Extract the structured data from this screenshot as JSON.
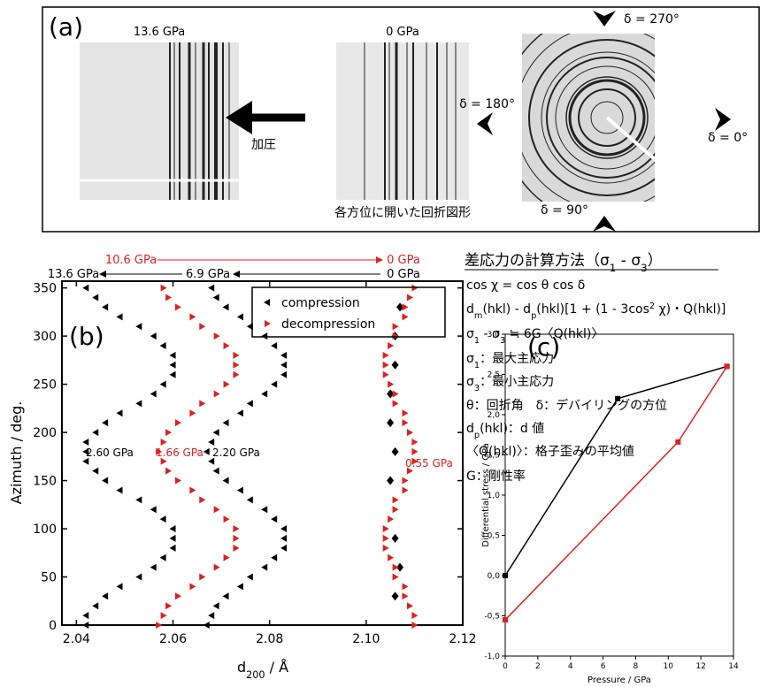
{
  "panel_a": {
    "label": "(a)",
    "image_labels": [
      "13.6 GPa",
      "0 GPa"
    ],
    "arrow_label": "加圧",
    "caption": "各方位に開いた回折図形",
    "directions": [
      "δ = 270°",
      "δ = 180°",
      "δ = 0°",
      "δ = 90°"
    ]
  },
  "method": {
    "title": [
      "差応力の計算方法（",
      "σ",
      {
        "sub": "1"
      },
      " - ",
      "σ",
      {
        "sub": "3"
      },
      "）"
    ],
    "lines": [
      [
        "cos χ = cos θ cos δ"
      ],
      [
        "d",
        {
          "sub": "m"
        },
        "(hkl) - d",
        {
          "sub": "p"
        },
        "(hkl)[1 + (1 - 3cos",
        {
          "sup": "2"
        },
        " χ)・Q(hkl)]"
      ],
      [
        "σ",
        {
          "sub": "1"
        },
        " - σ",
        {
          "sub": "3"
        },
        " ≒ 6G〈Q(hkl)〉"
      ],
      [
        "σ",
        {
          "sub": "1"
        },
        "：最大主応力"
      ],
      [
        "σ",
        {
          "sub": "3"
        },
        "：最小主応力"
      ],
      [
        "θ：回折角　δ：デバイリングの方位"
      ],
      [
        "d",
        {
          "sub": "p"
        },
        "(hkl)：d 値"
      ],
      [
        "〈Q(hkl)〉：格子歪みの平均値"
      ],
      [
        "G：剛性率"
      ]
    ]
  },
  "chart_data": [
    {
      "type": "scatter",
      "panel_label": "(b)",
      "xlabel": [
        "d",
        {
          "sub": "200"
        },
        " / Å"
      ],
      "ylabel": "Azimuth / deg.",
      "xlim": [
        2.037,
        2.12
      ],
      "ylim": [
        0,
        357
      ],
      "xticks": [
        2.04,
        2.06,
        2.08,
        {
          "value": 2.1,
          "label": "2.10"
        },
        2.12
      ],
      "yticks": [
        0,
        50,
        100,
        150,
        200,
        250,
        300,
        350
      ],
      "angles": [
        0,
        10,
        20,
        30,
        40,
        50,
        60,
        70,
        80,
        90,
        100,
        110,
        120,
        130,
        140,
        150,
        160,
        170,
        180,
        190,
        200,
        210,
        220,
        230,
        240,
        250,
        260,
        270,
        280,
        290,
        300,
        310,
        320,
        330,
        340,
        350
      ],
      "groups": [
        {
          "name": "compression",
          "color": "#000000",
          "marker": "triangle-left",
          "series": [
            {
              "label": "13.6 GPa",
              "x": [
                2.042,
                2.042,
                2.044,
                2.046,
                2.049,
                2.053,
                2.056,
                2.058,
                2.06,
                2.06,
                2.06,
                2.058,
                2.056,
                2.053,
                2.049,
                2.046,
                2.044,
                2.042,
                2.042,
                2.042,
                2.044,
                2.046,
                2.049,
                2.053,
                2.056,
                2.058,
                2.06,
                2.06,
                2.06,
                2.058,
                2.056,
                2.053,
                2.049,
                2.046,
                2.044,
                2.042
              ]
            },
            {
              "label": "6.9 GPa",
              "x": [
                2.067,
                2.068,
                2.069,
                2.071,
                2.074,
                2.076,
                2.079,
                2.081,
                2.083,
                2.083,
                2.083,
                2.081,
                2.079,
                2.076,
                2.074,
                2.071,
                2.069,
                2.068,
                2.067,
                2.068,
                2.069,
                2.071,
                2.074,
                2.076,
                2.079,
                2.081,
                2.083,
                2.083,
                2.083,
                2.081,
                2.079,
                2.076,
                2.074,
                2.071,
                2.069,
                2.068
              ]
            },
            {
              "label": "0 GPa",
              "marker": "diamond",
              "y": [
                30,
                60,
                90,
                150,
                180,
                210,
                240,
                270,
                300,
                330
              ],
              "x": [
                2.106,
                2.107,
                2.106,
                2.105,
                2.106,
                2.105,
                2.105,
                2.106,
                2.106,
                2.107
              ]
            }
          ]
        },
        {
          "name": "decompression",
          "color": "#e02020",
          "marker": "triangle-right",
          "series": [
            {
              "label": "10.6 GPa",
              "x": [
                2.057,
                2.058,
                2.059,
                2.061,
                2.064,
                2.066,
                2.069,
                2.071,
                2.073,
                2.073,
                2.073,
                2.071,
                2.069,
                2.066,
                2.064,
                2.061,
                2.059,
                2.058,
                2.057,
                2.058,
                2.059,
                2.061,
                2.064,
                2.066,
                2.069,
                2.071,
                2.073,
                2.073,
                2.073,
                2.071,
                2.069,
                2.066,
                2.064,
                2.061,
                2.059,
                2.058
              ]
            },
            {
              "label": "0 GPa",
              "x": [
                2.11,
                2.11,
                2.109,
                2.108,
                2.108,
                2.106,
                2.106,
                2.105,
                2.104,
                2.104,
                2.104,
                2.105,
                2.106,
                2.106,
                2.108,
                2.108,
                2.109,
                2.11,
                2.11,
                2.11,
                2.109,
                2.108,
                2.108,
                2.106,
                2.106,
                2.105,
                2.104,
                2.104,
                2.104,
                2.105,
                2.106,
                2.106,
                2.108,
                2.108,
                2.109,
                2.11
              ]
            }
          ]
        }
      ],
      "annotations": [
        {
          "text": "2.60 GPa",
          "color": "#000000"
        },
        {
          "text": "1.66 GPa",
          "color": "#e02020"
        },
        {
          "text": "2.20 GPa",
          "color": "#000000"
        },
        {
          "text": "0.55 GPa",
          "color": "#e02020"
        }
      ]
    },
    {
      "type": "line",
      "panel_label": "(c)",
      "xlabel": "Pressure / GPa",
      "ylabel": "Differential stress / GPa",
      "xlim": [
        0,
        14
      ],
      "ylim": [
        -1,
        3
      ],
      "xticks": [
        0,
        2,
        4,
        6,
        8,
        10,
        12,
        14
      ],
      "yticks": [
        {
          "value": -1,
          "label": "-1,0"
        },
        {
          "value": -0.5,
          "label": "-0,5"
        },
        {
          "value": 0,
          "label": "0,0"
        },
        {
          "value": 0.5,
          "label": "0,5"
        },
        {
          "value": 1,
          "label": "1,0"
        },
        {
          "value": 1.5,
          "label": "1,5"
        },
        {
          "value": 2,
          "label": "2,0"
        },
        {
          "value": 2.5,
          "label": "2,5"
        },
        {
          "value": 3,
          "label": "3,0"
        }
      ],
      "series": [
        {
          "color": "#000000",
          "x": [
            0,
            6.9,
            13.6
          ],
          "y": [
            0,
            2.2,
            2.6
          ]
        },
        {
          "color": "#e02020",
          "x": [
            0,
            10.6,
            13.6
          ],
          "y": [
            -0.55,
            1.66,
            2.6
          ]
        }
      ]
    }
  ]
}
